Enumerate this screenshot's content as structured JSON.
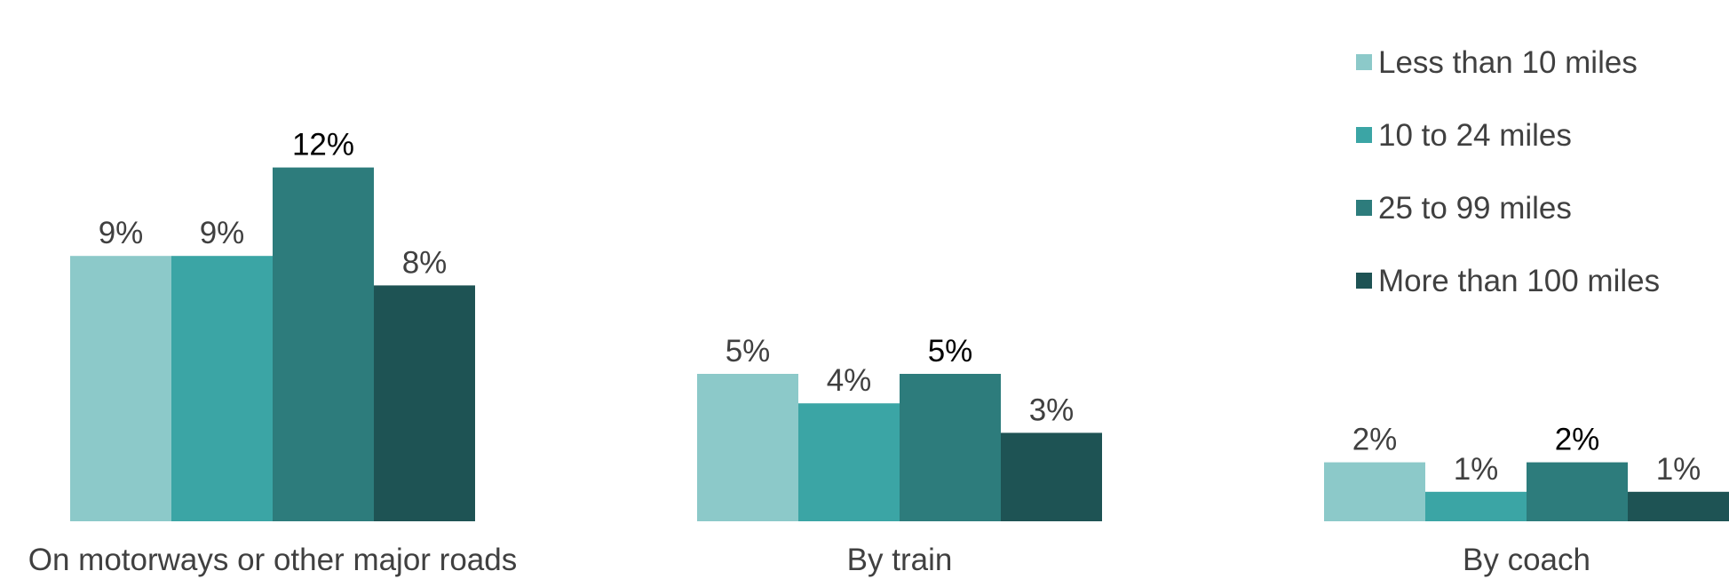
{
  "chart_data": {
    "type": "bar",
    "categories": [
      "On motorways or other major roads",
      "By train",
      "By coach"
    ],
    "series": [
      {
        "name": "Less than 10 miles",
        "values": [
          9,
          5,
          2
        ],
        "labels": [
          "9%",
          "5%",
          "2%"
        ],
        "color": "#8cc9c9"
      },
      {
        "name": "10 to 24 miles",
        "values": [
          9,
          4,
          1
        ],
        "labels": [
          "9%",
          "4%",
          "1%"
        ],
        "color": "#3ba5a5"
      },
      {
        "name": "25 to 99 miles",
        "values": [
          12,
          5,
          2
        ],
        "labels": [
          "12%",
          "5%",
          "2%"
        ],
        "color": "#2d7c7c"
      },
      {
        "name": "More than 100 miles",
        "values": [
          8,
          3,
          1
        ],
        "labels": [
          "8%",
          "3%",
          "1%"
        ],
        "color": "#1e5354"
      }
    ],
    "ylim": [
      0,
      12
    ],
    "grid": false,
    "legend": "top-right"
  }
}
